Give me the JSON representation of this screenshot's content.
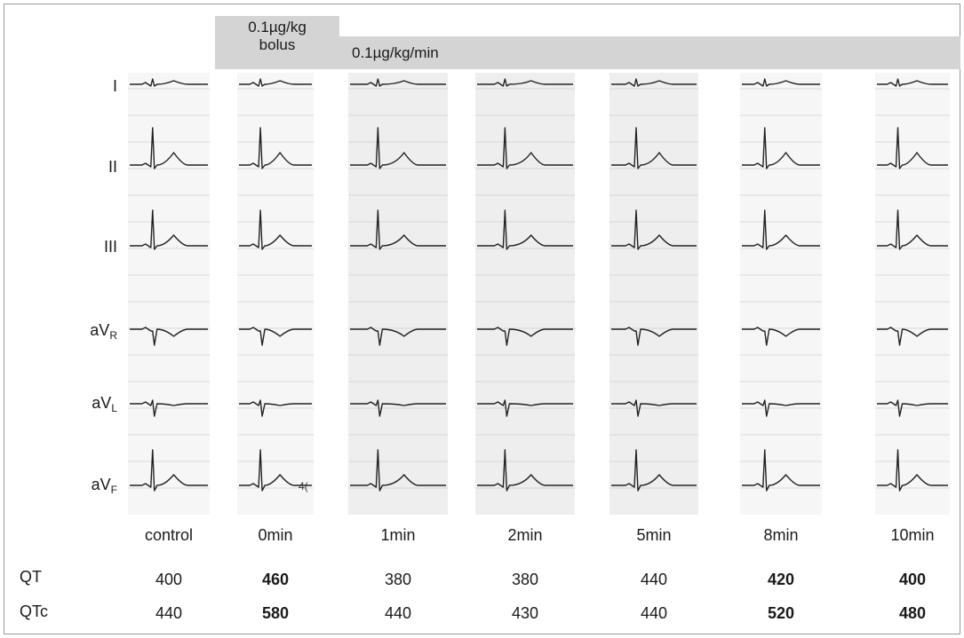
{
  "bands": {
    "bolus": "0.1µg/kg\nbolus",
    "bolus_line1": "0.1µg/kg",
    "bolus_line2": "bolus",
    "infusion": "0.1µg/kg/min"
  },
  "leads": [
    {
      "main": "I",
      "sub": ""
    },
    {
      "main": "II",
      "sub": ""
    },
    {
      "main": "III",
      "sub": ""
    },
    {
      "main": "aV",
      "sub": "R"
    },
    {
      "main": "aV",
      "sub": "L"
    },
    {
      "main": "aV",
      "sub": "F"
    }
  ],
  "columns": [
    "control",
    "0min",
    "1min",
    "2min",
    "5min",
    "8min",
    "10min"
  ],
  "rows": {
    "qt": {
      "label": "QT",
      "values": [
        "400",
        "460",
        "380",
        "380",
        "440",
        "420",
        "400"
      ],
      "bold": [
        false,
        true,
        false,
        false,
        false,
        true,
        true
      ]
    },
    "qtc": {
      "label": "QTc",
      "values": [
        "440",
        "580",
        "440",
        "430",
        "440",
        "520",
        "480"
      ],
      "bold": [
        false,
        true,
        false,
        false,
        false,
        true,
        true
      ]
    }
  },
  "strip_annotation": "4("
}
